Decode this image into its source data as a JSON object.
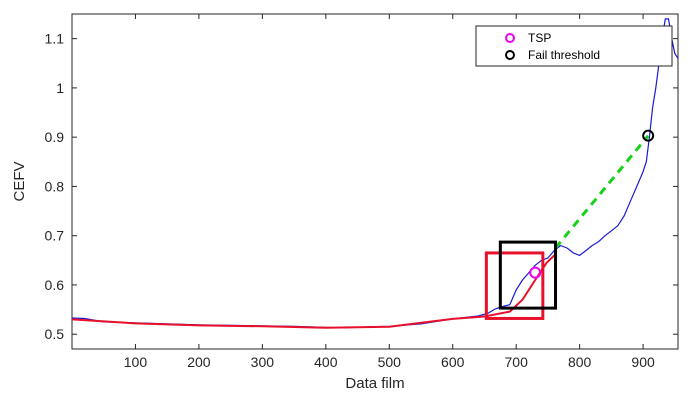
{
  "chart_data": {
    "type": "line",
    "title": "",
    "xlabel": "Data film",
    "ylabel": "CEFV",
    "xlim": [
      0,
      955
    ],
    "ylim": [
      0.47,
      1.15
    ],
    "x_ticks": [
      100,
      200,
      300,
      400,
      500,
      600,
      700,
      800,
      900
    ],
    "y_ticks": [
      0.5,
      0.6,
      0.7,
      0.8,
      0.9,
      1,
      1.1
    ],
    "y_tick_labels": [
      "0.5",
      "0.6",
      "0.7",
      "0.8",
      "0.9",
      "1",
      "1.1"
    ],
    "grid": false,
    "legend_position": "top-right",
    "series": [
      {
        "id": "cefv",
        "color": "#1a1ad6",
        "style": "solid",
        "points": [
          [
            0,
            0.533
          ],
          [
            20,
            0.532
          ],
          [
            50,
            0.525
          ],
          [
            100,
            0.523
          ],
          [
            150,
            0.521
          ],
          [
            200,
            0.519
          ],
          [
            250,
            0.518
          ],
          [
            300,
            0.517
          ],
          [
            350,
            0.516
          ],
          [
            400,
            0.514
          ],
          [
            430,
            0.513
          ],
          [
            470,
            0.515
          ],
          [
            500,
            0.516
          ],
          [
            550,
            0.521
          ],
          [
            600,
            0.531
          ],
          [
            640,
            0.537
          ],
          [
            655,
            0.542
          ],
          [
            665,
            0.55
          ],
          [
            675,
            0.555
          ],
          [
            690,
            0.56
          ],
          [
            700,
            0.59
          ],
          [
            710,
            0.61
          ],
          [
            720,
            0.625
          ],
          [
            730,
            0.64
          ],
          [
            740,
            0.65
          ],
          [
            750,
            0.655
          ],
          [
            760,
            0.67
          ],
          [
            770,
            0.68
          ],
          [
            780,
            0.675
          ],
          [
            790,
            0.665
          ],
          [
            800,
            0.66
          ],
          [
            810,
            0.67
          ],
          [
            820,
            0.68
          ],
          [
            830,
            0.688
          ],
          [
            840,
            0.7
          ],
          [
            850,
            0.71
          ],
          [
            860,
            0.72
          ],
          [
            870,
            0.74
          ],
          [
            880,
            0.77
          ],
          [
            890,
            0.8
          ],
          [
            900,
            0.83
          ],
          [
            905,
            0.85
          ],
          [
            910,
            0.9
          ],
          [
            915,
            0.96
          ],
          [
            920,
            1.0
          ],
          [
            925,
            1.05
          ],
          [
            930,
            1.1
          ],
          [
            935,
            1.14
          ],
          [
            940,
            1.14
          ],
          [
            945,
            1.1
          ],
          [
            950,
            1.07
          ],
          [
            955,
            1.06
          ]
        ]
      },
      {
        "id": "trend",
        "color": "#e8102a",
        "style": "solid",
        "points": [
          [
            0,
            0.53
          ],
          [
            100,
            0.522
          ],
          [
            200,
            0.518
          ],
          [
            300,
            0.516
          ],
          [
            400,
            0.513
          ],
          [
            500,
            0.515
          ],
          [
            600,
            0.531
          ],
          [
            650,
            0.536
          ],
          [
            690,
            0.546
          ],
          [
            710,
            0.57
          ],
          [
            730,
            0.61
          ],
          [
            748,
            0.645
          ],
          [
            760,
            0.66
          ]
        ]
      },
      {
        "id": "prediction",
        "color": "#18d018",
        "style": "dashed",
        "points": [
          [
            762,
            0.675
          ],
          [
            908,
            0.903
          ]
        ]
      }
    ],
    "markers": [
      {
        "name": "TSP",
        "x": 730,
        "y": 0.625,
        "color": "#f000f0"
      },
      {
        "name": "Fail threshold",
        "x": 908,
        "y": 0.903,
        "color": "#000000"
      }
    ],
    "boxes": [
      {
        "id": "red-box",
        "x": [
          653,
          742
        ],
        "y": [
          0.532,
          0.665
        ],
        "color": "#e8102a"
      },
      {
        "id": "black-box",
        "x": [
          675,
          762
        ],
        "y": [
          0.553,
          0.687
        ],
        "color": "#000000"
      }
    ],
    "legend": [
      {
        "label": "TSP",
        "color": "#f000f0"
      },
      {
        "label": "Fail threshold",
        "color": "#000000"
      }
    ]
  }
}
